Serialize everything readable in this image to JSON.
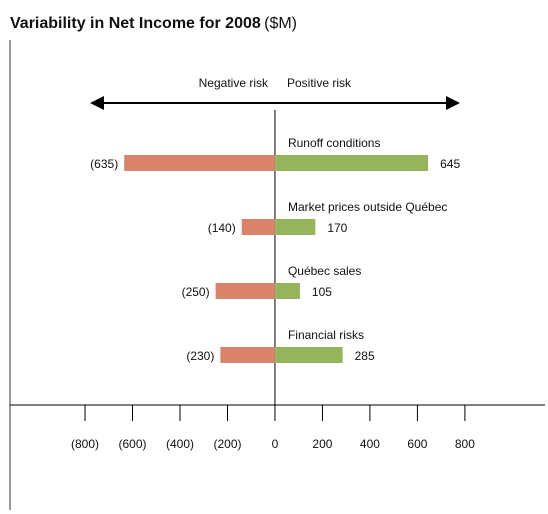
{
  "chart_data": {
    "type": "bar",
    "orientation": "horizontal",
    "title": "Variability in Net Income for 2008",
    "title_suffix": "($M)",
    "annotations": [
      "Negative risk",
      "Positive risk"
    ],
    "categories": [
      "Runoff conditions",
      "Market prices outside Québec",
      "Québec sales",
      "Financial risks"
    ],
    "series": [
      {
        "color": "#d9836b",
        "values": [
          -635,
          -140,
          -250,
          -230
        ],
        "value_labels": [
          "(635)",
          "(140)",
          "(250)",
          "(230)"
        ]
      },
      {
        "color": "#95b45b",
        "values": [
          645,
          170,
          105,
          285
        ]
      }
    ],
    "xlim": [
      -1116,
      1150
    ],
    "xticks": [
      {
        "value": -800,
        "label": "(800)"
      },
      {
        "value": -600,
        "label": "(600)"
      },
      {
        "value": -400,
        "label": "(400)"
      },
      {
        "value": -200,
        "label": "(200)"
      },
      0,
      200,
      400,
      600,
      800
    ]
  }
}
